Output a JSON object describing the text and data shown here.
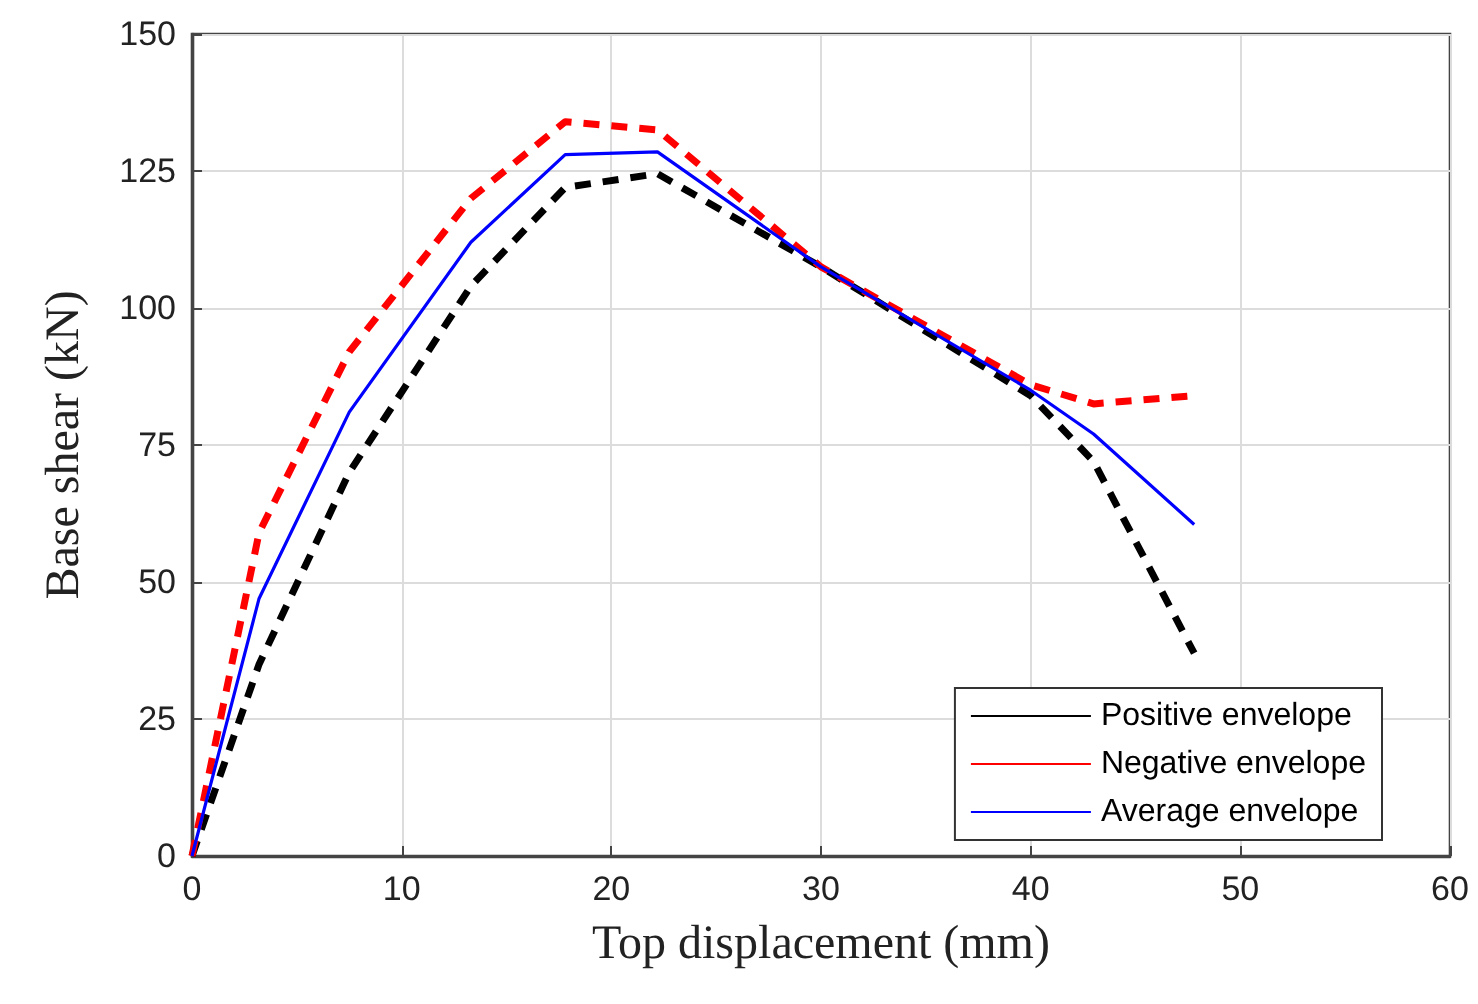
{
  "chart_data": {
    "type": "line",
    "xlabel": "Top displacement (mm)",
    "ylabel": "Base shear (kN)",
    "x": [
      0,
      3.2,
      7.5,
      13.3,
      17.8,
      22.2,
      30,
      40,
      43,
      47.8
    ],
    "series": [
      {
        "name": "Positive envelope",
        "color": "#000000",
        "line_style": "dashed",
        "values": [
          0,
          35,
          70,
          104,
          122,
          124.5,
          107.5,
          84,
          72,
          37
        ]
      },
      {
        "name": "Negative envelope",
        "color": "#ff0000",
        "line_style": "dashed",
        "values": [
          0,
          59,
          92,
          120,
          134,
          132.5,
          107.5,
          86,
          82.5,
          84
        ]
      },
      {
        "name": "Average envelope",
        "color": "#0000ff",
        "line_style": "solid",
        "values": [
          0,
          47,
          81,
          112,
          128,
          128.5,
          107.5,
          85,
          77,
          60.5
        ]
      }
    ],
    "xlim": [
      0,
      60
    ],
    "xticks": [
      0,
      10,
      20,
      30,
      40,
      50,
      60
    ],
    "ylim": [
      0,
      150
    ],
    "yticks": [
      0,
      25,
      50,
      75,
      100,
      125,
      150
    ],
    "grid": true,
    "legend": "bottom right",
    "marker": "none"
  }
}
